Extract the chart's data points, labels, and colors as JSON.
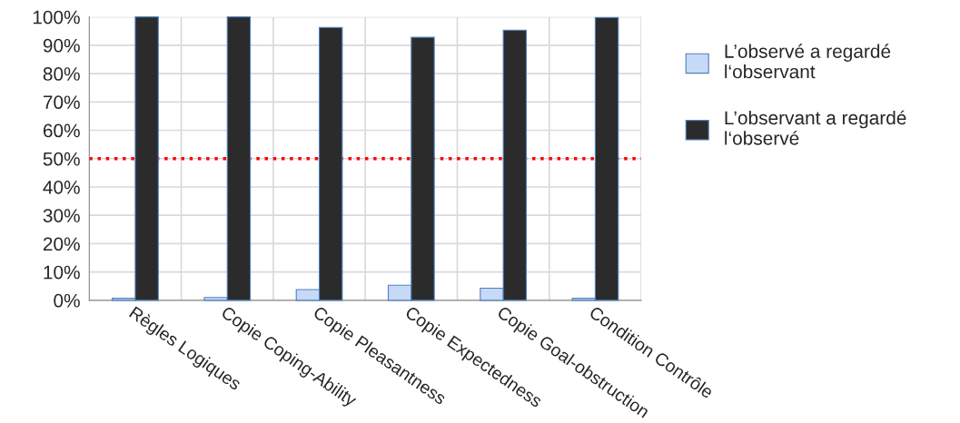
{
  "chart_data": {
    "type": "bar",
    "categories": [
      "Règles Logiques",
      "Copie Coping-Ability",
      "Copie Pleasantness",
      "Copie Expectedness",
      "Copie Goal-obstruction",
      "Condition Contrôle"
    ],
    "series": [
      {
        "name": "L’observé a regardé l‘observant",
        "color": "#c6d9f7",
        "values": [
          0.7,
          1.0,
          3.8,
          5.3,
          4.3,
          0.7
        ]
      },
      {
        "name": "L’observant a regardé l‘observé",
        "color": "#2b2b2b",
        "values": [
          100,
          100,
          96.3,
          92.8,
          95.3,
          99.8
        ]
      }
    ],
    "ylim": [
      0,
      100
    ],
    "yticks": [
      {
        "value": 0,
        "label": "0%"
      },
      {
        "value": 10,
        "label": "10%"
      },
      {
        "value": 20,
        "label": "20%"
      },
      {
        "value": 30,
        "label": "30%"
      },
      {
        "value": 40,
        "label": "40%"
      },
      {
        "value": 50,
        "label": "50%"
      },
      {
        "value": 60,
        "label": "60%"
      },
      {
        "value": 70,
        "label": "70%"
      },
      {
        "value": 80,
        "label": "80%"
      },
      {
        "value": 90,
        "label": "90%"
      },
      {
        "value": 100,
        "label": "100%"
      }
    ],
    "ref_lines": [
      {
        "axis": "y",
        "value": 50,
        "color": "#ff0000",
        "line_style": "dotted"
      }
    ],
    "grid": true,
    "legend": "right"
  }
}
